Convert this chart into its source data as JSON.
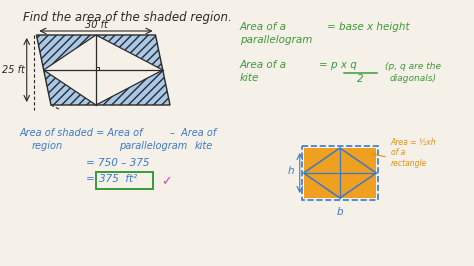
{
  "background_color": "#f5f0e8",
  "title": "Find the area of the shaded region.",
  "dark_color": "#2a2a2a",
  "green_color": "#3a9a3a",
  "blue_color": "#3a7ac8",
  "orange_color": "#e89010",
  "pink_color": "#cc44bb",
  "shade_color": "#aac8e8",
  "label_30": "30 ft",
  "label_25": "25 ft"
}
